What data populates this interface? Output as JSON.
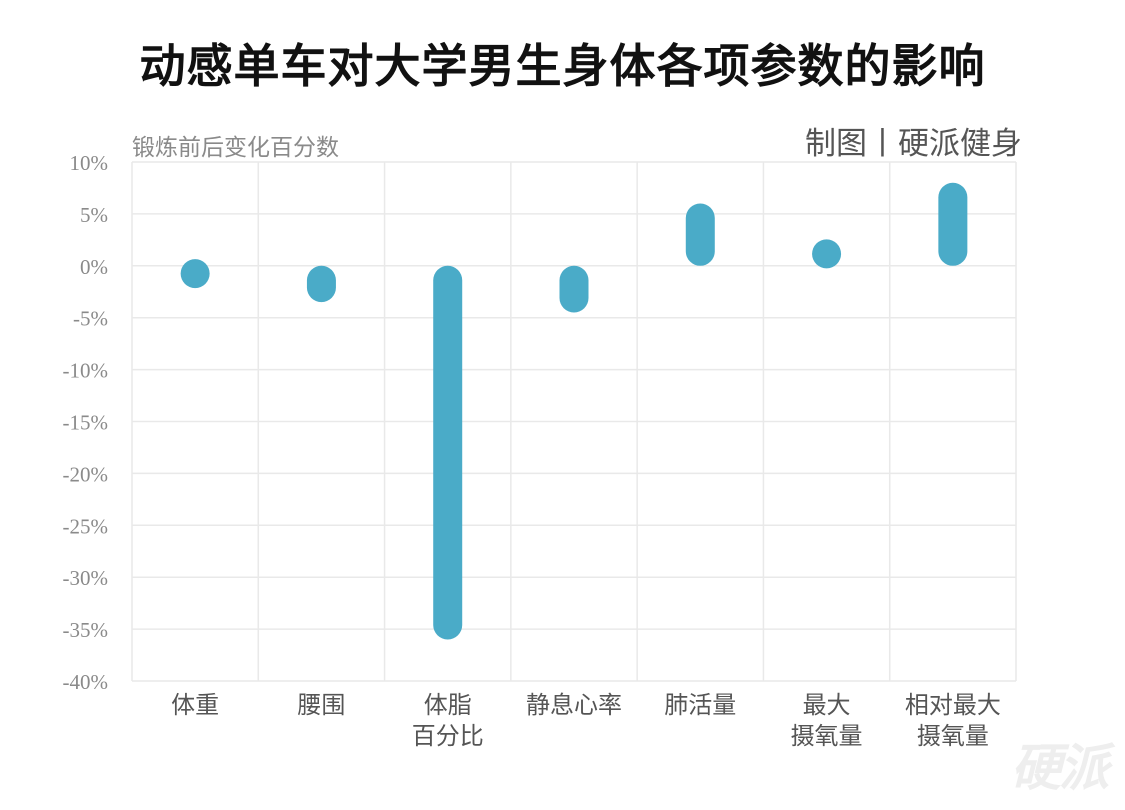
{
  "title": "动感单车对大学男生身体各项参数的影响",
  "credit": "制图丨硬派健身",
  "watermark": "硬派",
  "chart_data": {
    "type": "bar",
    "subtype": "floating-range",
    "title": "动感单车对大学男生身体各项参数的影响",
    "ylabel": "锻炼前后变化百分数",
    "xlabel": "",
    "ylim": [
      -40,
      10
    ],
    "yticks": [
      10,
      5,
      0,
      -5,
      -10,
      -15,
      -20,
      -25,
      -30,
      -35,
      -40
    ],
    "ytick_labels": [
      "10%",
      "5%",
      "0%",
      "-5%",
      "-10%",
      "-15%",
      "-20%",
      "-25%",
      "-30%",
      "-35%",
      "-40%"
    ],
    "categories": [
      [
        "体重"
      ],
      [
        "腰围"
      ],
      [
        "体脂",
        "百分比"
      ],
      [
        "静息心率"
      ],
      [
        "肺活量"
      ],
      [
        "最大",
        "摄氧量"
      ],
      [
        "相对最大",
        "摄氧量"
      ]
    ],
    "values": [
      -1.5,
      -3.5,
      -36.0,
      -4.5,
      6.0,
      2.3,
      8.0
    ],
    "bar_color": "#4aabc8",
    "grid": true
  }
}
